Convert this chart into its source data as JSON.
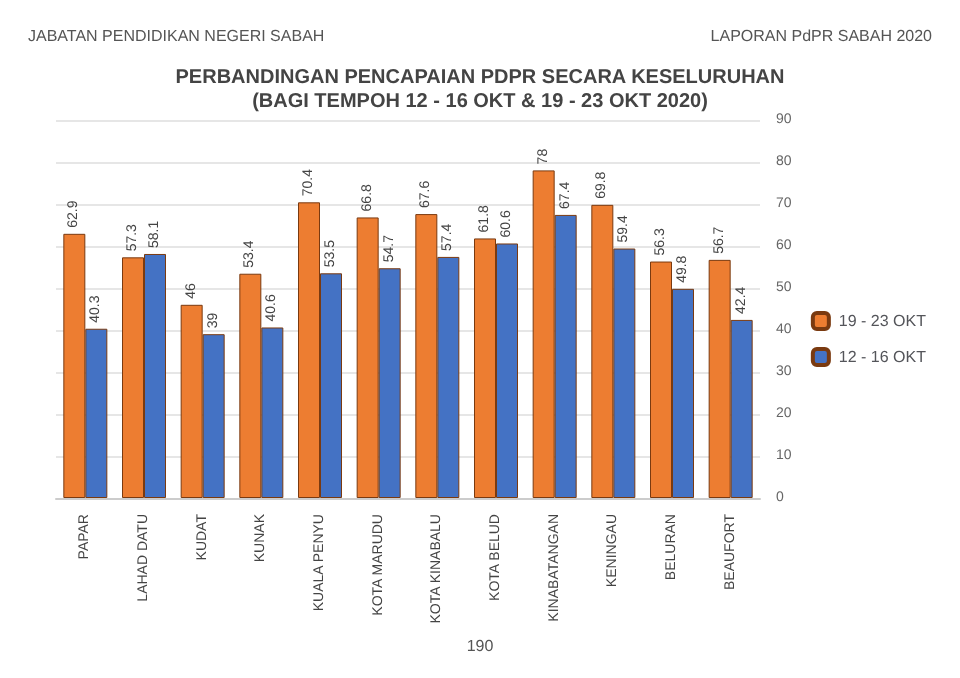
{
  "chart_data": {
    "type": "bar",
    "title": "PERBANDINGAN PENCAPAIAN PDPR SECARA KESELURUHAN\n(BAGI TEMPOH 12 - 16 OKT & 19 - 23 OKT 2020)",
    "categories": [
      "PAPAR",
      "LAHAD DATU",
      "KUDAT",
      "KUNAK",
      "KUALA PENYU",
      "KOTA MARUDU",
      "KOTA KINABALU",
      "KOTA BELUD",
      "KINABATANGAN",
      "KENINGAU",
      "BELURAN",
      "BEAUFORT"
    ],
    "series": [
      {
        "name": "19 - 23 OKT",
        "color": "#ed7d31",
        "values": [
          62.9,
          57.3,
          46,
          53.4,
          70.4,
          66.8,
          67.6,
          61.8,
          78,
          69.8,
          56.3,
          56.7
        ]
      },
      {
        "name": "12 - 16 OKT",
        "color": "#4472c4",
        "values": [
          40.3,
          58.1,
          39,
          40.6,
          53.5,
          54.7,
          57.4,
          60.6,
          67.4,
          59.4,
          49.8,
          42.4
        ]
      }
    ],
    "ylim": [
      0,
      90
    ],
    "yticks": [
      0,
      10,
      20,
      30,
      40,
      50,
      60,
      70,
      80,
      90
    ],
    "grid": "y",
    "legend": "right",
    "data_labels": true,
    "annotations": [
      "JABATAN PENDIDIKAN NEGERI SABAH",
      "LAPORAN PdPR SABAH 2020",
      "190"
    ]
  }
}
